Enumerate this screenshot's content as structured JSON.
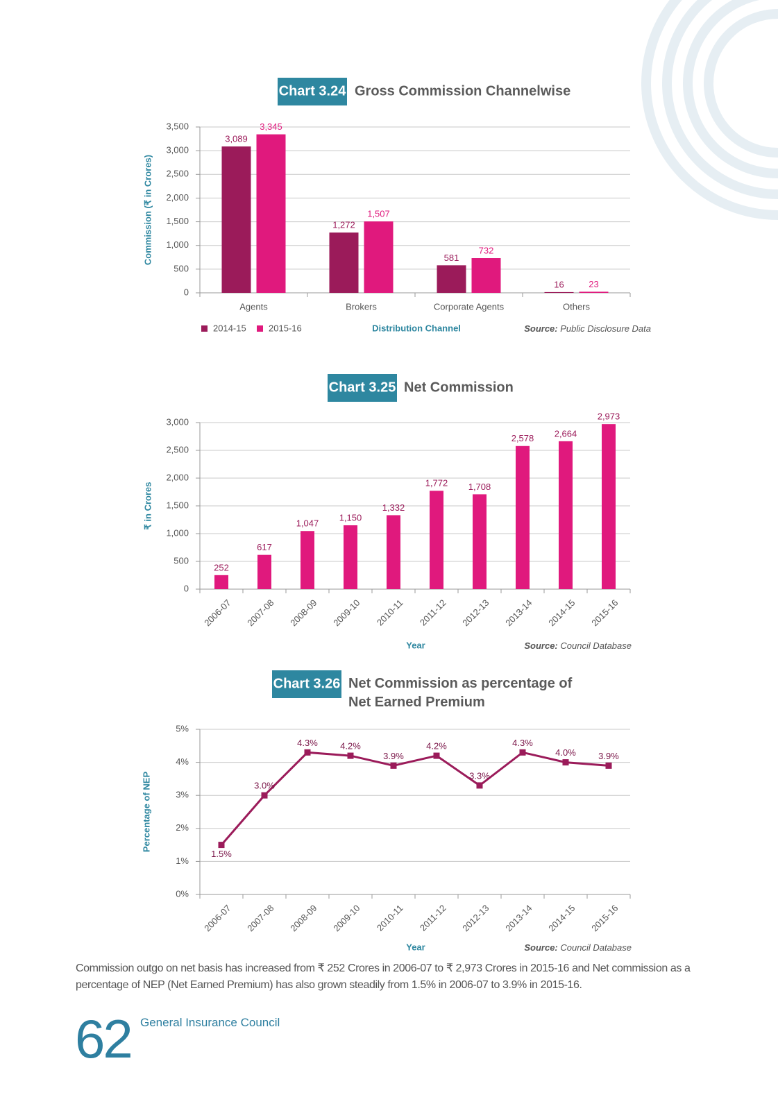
{
  "chart_data": [
    {
      "type": "bar",
      "chart_number": "Chart 3.24",
      "title": "Gross Commission Channelwise",
      "y_label": "Commission (₹ in Crores)",
      "x_label": "Distribution Channel",
      "source_label": "Source:",
      "source": "Public Disclosure Data",
      "categories": [
        "Agents",
        "Brokers",
        "Corporate Agents",
        "Others"
      ],
      "series": [
        {
          "name": "2014-15",
          "color": "#9b1b5a",
          "values": [
            3089,
            1272,
            581,
            16
          ],
          "value_labels": [
            "3,089",
            "1,272",
            "581",
            "16"
          ]
        },
        {
          "name": "2015-16",
          "color": "#e0197d",
          "values": [
            3345,
            1507,
            732,
            23
          ],
          "value_labels": [
            "3,345",
            "1,507",
            "732",
            "23"
          ]
        }
      ],
      "ylim": [
        0,
        3500
      ],
      "yticks": [
        0,
        500,
        {
          "value": 1000,
          "label": "1,000"
        },
        {
          "value": 1500,
          "label": "1,500"
        },
        {
          "value": 2000,
          "label": "2,000"
        },
        {
          "value": 2500,
          "label": "2,500"
        },
        {
          "value": 3000,
          "label": "3,000"
        },
        {
          "value": 3500,
          "label": "3,500"
        }
      ],
      "grid": true,
      "legend": "bottom-left"
    },
    {
      "type": "bar",
      "chart_number": "Chart 3.25",
      "title": "Net Commission",
      "y_label": "₹ in Crores",
      "x_label": "Year",
      "source_label": "Source:",
      "source": "Council Database",
      "categories": [
        "2006-07",
        "2007-08",
        "2008-09",
        "2009-10",
        "2010-11",
        "2011-12",
        "2012-13",
        "2013-14",
        "2014-15",
        "2015-16"
      ],
      "series": [
        {
          "color": "#e0197d",
          "values": [
            252,
            617,
            1047,
            1150,
            1332,
            1772,
            1708,
            2578,
            2664,
            2973
          ],
          "value_labels": [
            "252",
            "617",
            "1,047",
            "1,150",
            "1,332",
            "1,772",
            "1,708",
            "2,578",
            "2,664",
            "2,973"
          ]
        }
      ],
      "ylim": [
        0,
        3000
      ],
      "yticks": [
        0,
        500,
        {
          "value": 1000,
          "label": "1,000"
        },
        {
          "value": 1500,
          "label": "1,500"
        },
        {
          "value": 2000,
          "label": "2,000"
        },
        {
          "value": 2500,
          "label": "2,500"
        },
        {
          "value": 3000,
          "label": "3,000"
        }
      ],
      "grid": true
    },
    {
      "type": "line",
      "chart_number": "Chart 3.26",
      "title": "Net Commission as percentage of Net Earned Premium",
      "y_label": "Percentage of NEP",
      "x_label": "Year",
      "source_label": "Source:",
      "source": "Council Database",
      "categories": [
        "2006-07",
        "2007-08",
        "2008-09",
        "2009-10",
        "2010-11",
        "2011-12",
        "2012-13",
        "2013-14",
        "2014-15",
        "2015-16"
      ],
      "series": [
        {
          "color": "#9b1b5a",
          "values": [
            1.5,
            3.0,
            4.3,
            4.2,
            3.9,
            4.2,
            3.3,
            4.3,
            4.0,
            3.9
          ],
          "value_labels": [
            "1.5%",
            "3.0%",
            "4.3%",
            "4.2%",
            "3.9%",
            "4.2%",
            "3.3%",
            "4.3%",
            "4.0%",
            "3.9%"
          ]
        }
      ],
      "ylim": [
        0,
        5
      ],
      "yticks": [
        {
          "value": 0,
          "label": "0%"
        },
        {
          "value": 1,
          "label": "1%"
        },
        {
          "value": 2,
          "label": "2%"
        },
        {
          "value": 3,
          "label": "3%"
        },
        {
          "value": 4,
          "label": "4%"
        },
        {
          "value": 5,
          "label": "5%"
        }
      ],
      "grid": true
    }
  ],
  "paragraph": "Commission outgo on net basis has increased from ₹ 252 Crores in 2006-07 to ₹ 2,973 Crores in 2015-16 and Net commission as a percentage of NEP (Net Earned Premium) has also grown steadily from 1.5% in 2006-07 to 3.9% in 2015-16.",
  "footer": {
    "page_number": "62",
    "publisher": "General Insurance Council"
  }
}
